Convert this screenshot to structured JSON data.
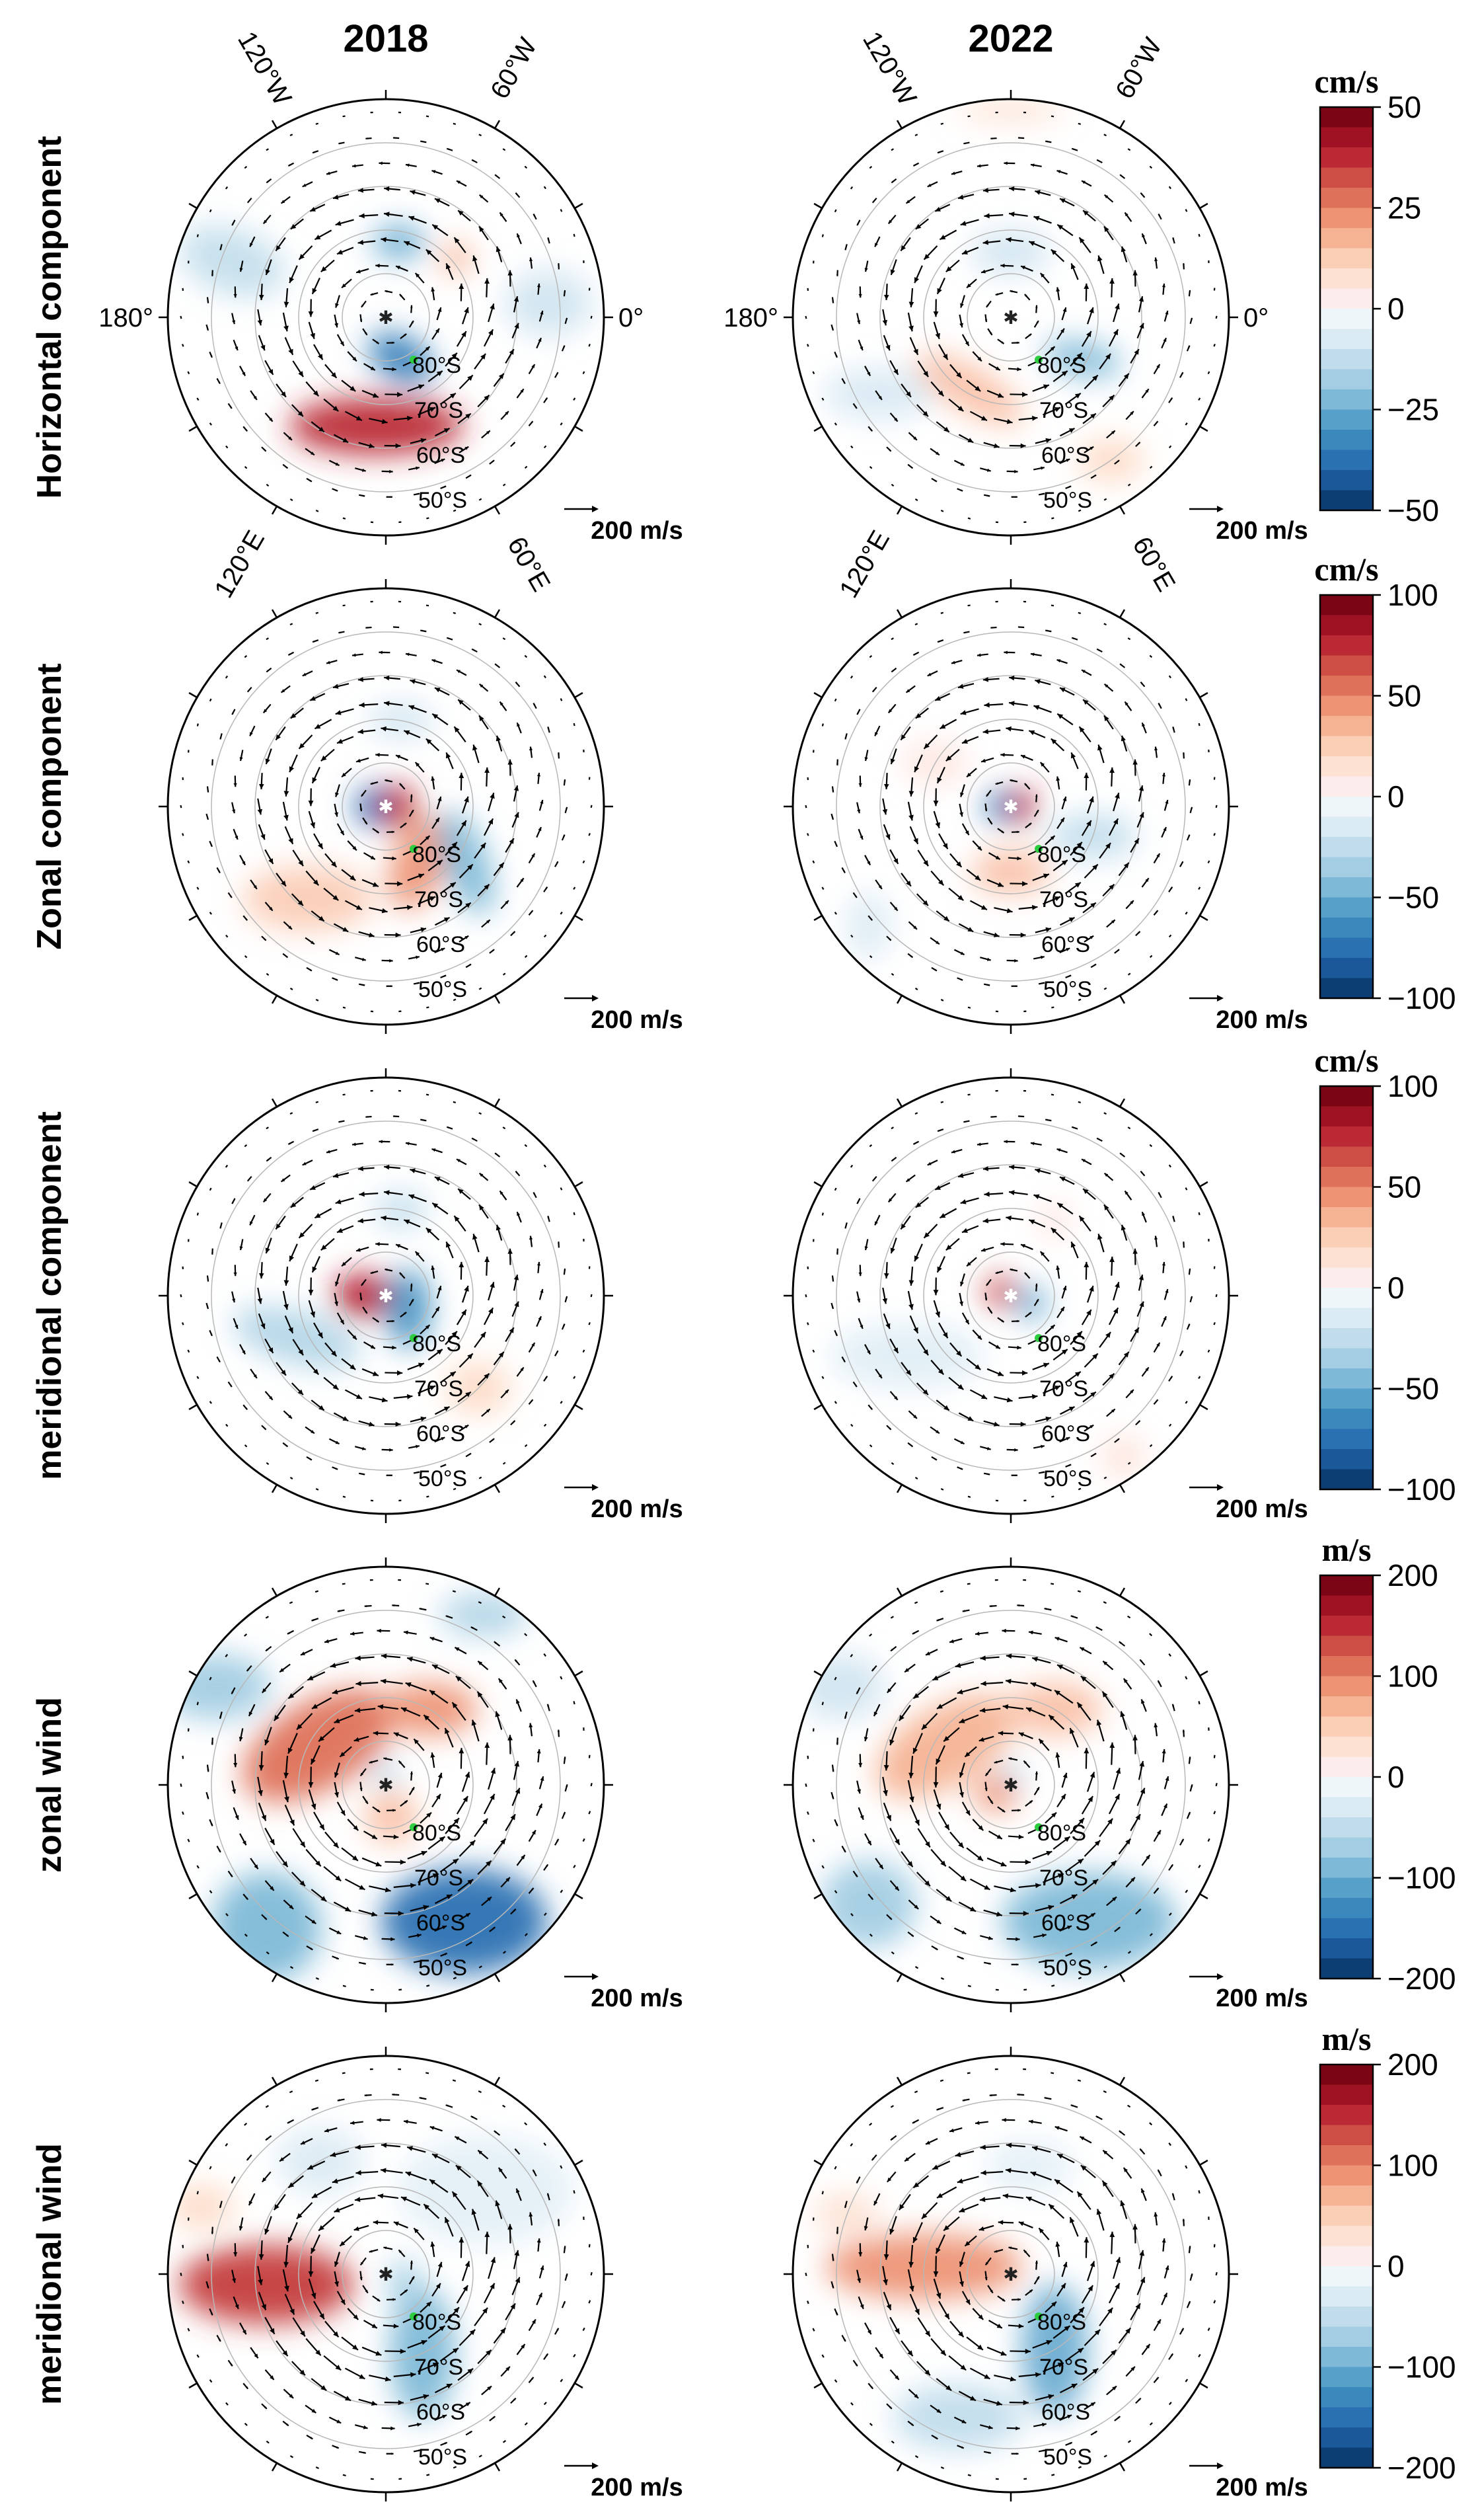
{
  "chart_data": {
    "type": "polar-contour-panels",
    "columns": [
      "2018",
      "2022"
    ],
    "compass_labels": {
      "top_left": "120°W",
      "top_right": "60°W",
      "left": "180°",
      "right": "0°",
      "bottom_left": "120°E",
      "bottom_right": "60°E"
    },
    "latitude_rings": [
      "80°S",
      "70°S",
      "60°S",
      "50°S"
    ],
    "reference_vector": "200 m/s",
    "rows": [
      {
        "label": "Horizontal component",
        "unit": "cm/s",
        "colorbar_ticks": [
          "50",
          "25",
          "0",
          "−25",
          "−50"
        ],
        "vmin": -50,
        "vmax": 50,
        "panels": [
          {
            "year": "2018",
            "blobs": [
              {
                "v": -35,
                "r": 0.2,
                "a": -70,
                "rx": 0.16,
                "ry": 0.1,
                "rot": 30
              },
              {
                "v": 38,
                "r": 0.5,
                "a": -95,
                "rx": 0.4,
                "ry": 0.13,
                "rot": 0
              },
              {
                "v": -25,
                "r": 0.35,
                "a": 80,
                "rx": 0.12,
                "ry": 0.08,
                "rot": 0
              },
              {
                "v": 18,
                "r": 0.42,
                "a": 40,
                "rx": 0.07,
                "ry": 0.07,
                "rot": 0
              },
              {
                "v": -12,
                "r": 0.75,
                "a": 160,
                "rx": 0.25,
                "ry": 0.15,
                "rot": 20
              },
              {
                "v": -10,
                "r": 0.75,
                "a": 5,
                "rx": 0.2,
                "ry": 0.15,
                "rot": 0
              }
            ]
          },
          {
            "year": "2022",
            "blobs": [
              {
                "v": -22,
                "r": 0.38,
                "a": -30,
                "rx": 0.18,
                "ry": 0.08,
                "rot": 10
              },
              {
                "v": 15,
                "r": 0.38,
                "a": -120,
                "rx": 0.28,
                "ry": 0.1,
                "rot": 30
              },
              {
                "v": 8,
                "r": 0.95,
                "a": 90,
                "rx": 0.25,
                "ry": 0.05,
                "rot": 0
              },
              {
                "v": -10,
                "r": 0.3,
                "a": 90,
                "rx": 0.18,
                "ry": 0.1,
                "rot": 0
              },
              {
                "v": 10,
                "r": 0.8,
                "a": -55,
                "rx": 0.15,
                "ry": 0.1,
                "rot": 0
              },
              {
                "v": -8,
                "r": 0.7,
                "a": -150,
                "rx": 0.25,
                "ry": 0.12,
                "rot": 0
              }
            ]
          }
        ]
      },
      {
        "label": "Zonal component",
        "unit": "cm/s",
        "colorbar_ticks": [
          "100",
          "50",
          "0",
          "−50",
          "−100"
        ],
        "vmin": -100,
        "vmax": 100,
        "panels": [
          {
            "year": "2018",
            "blobs": [
              {
                "v": -80,
                "r": 0.05,
                "a": 180,
                "rx": 0.09,
                "ry": 0.09,
                "rot": 0
              },
              {
                "v": 75,
                "r": 0.06,
                "a": 0,
                "rx": 0.08,
                "ry": 0.1,
                "rot": 0
              },
              {
                "v": 45,
                "r": 0.3,
                "a": -60,
                "rx": 0.12,
                "ry": 0.22,
                "rot": 20
              },
              {
                "v": -45,
                "r": 0.45,
                "a": -35,
                "rx": 0.1,
                "ry": 0.25,
                "rot": -20
              },
              {
                "v": 25,
                "r": 0.55,
                "a": -130,
                "rx": 0.3,
                "ry": 0.15,
                "rot": 0
              },
              {
                "v": -20,
                "r": 0.4,
                "a": 80,
                "rx": 0.15,
                "ry": 0.08,
                "rot": 0
              }
            ]
          },
          {
            "year": "2022",
            "blobs": [
              {
                "v": -70,
                "r": 0.05,
                "a": 180,
                "rx": 0.07,
                "ry": 0.07,
                "rot": 0
              },
              {
                "v": 80,
                "r": 0.05,
                "a": 0,
                "rx": 0.06,
                "ry": 0.08,
                "rot": 0
              },
              {
                "v": -25,
                "r": 0.4,
                "a": -20,
                "rx": 0.2,
                "ry": 0.1,
                "rot": 0
              },
              {
                "v": 30,
                "r": 0.3,
                "a": -90,
                "rx": 0.18,
                "ry": 0.1,
                "rot": 0
              },
              {
                "v": -15,
                "r": 0.85,
                "a": -140,
                "rx": 0.1,
                "ry": 0.15,
                "rot": 0
              },
              {
                "v": 10,
                "r": 0.4,
                "a": 150,
                "rx": 0.15,
                "ry": 0.1,
                "rot": 0
              }
            ]
          }
        ]
      },
      {
        "label": "meridional component",
        "unit": "cm/s",
        "colorbar_ticks": [
          "100",
          "50",
          "0",
          "−50",
          "−100"
        ],
        "vmin": -100,
        "vmax": 100,
        "panels": [
          {
            "year": "2018",
            "blobs": [
              {
                "v": 80,
                "r": 0.1,
                "a": 180,
                "rx": 0.14,
                "ry": 0.1,
                "rot": 0
              },
              {
                "v": -60,
                "r": 0.12,
                "a": -30,
                "rx": 0.1,
                "ry": 0.18,
                "rot": 0
              },
              {
                "v": -30,
                "r": 0.45,
                "a": -155,
                "rx": 0.3,
                "ry": 0.12,
                "rot": 15
              },
              {
                "v": 20,
                "r": 0.6,
                "a": -45,
                "rx": 0.15,
                "ry": 0.12,
                "rot": 0
              },
              {
                "v": -25,
                "r": 0.4,
                "a": 80,
                "rx": 0.12,
                "ry": 0.08,
                "rot": 0
              }
            ]
          },
          {
            "year": "2022",
            "blobs": [
              {
                "v": 70,
                "r": 0.05,
                "a": 160,
                "rx": 0.07,
                "ry": 0.07,
                "rot": 0
              },
              {
                "v": -50,
                "r": 0.1,
                "a": -20,
                "rx": 0.07,
                "ry": 0.08,
                "rot": 0
              },
              {
                "v": -12,
                "r": 0.55,
                "a": -150,
                "rx": 0.35,
                "ry": 0.15,
                "rot": 0
              },
              {
                "v": 12,
                "r": 0.9,
                "a": -55,
                "rx": 0.1,
                "ry": 0.1,
                "rot": 0
              },
              {
                "v": 10,
                "r": 0.4,
                "a": 60,
                "rx": 0.08,
                "ry": 0.08,
                "rot": 0
              }
            ]
          }
        ]
      },
      {
        "label": "zonal wind",
        "unit": "m/s",
        "colorbar_ticks": [
          "200",
          "100",
          "0",
          "−100",
          "−200"
        ],
        "vmin": -200,
        "vmax": 200,
        "panels": [
          {
            "year": "2018",
            "blobs": [
              {
                "v": -150,
                "r": 0.72,
                "a": -60,
                "rx": 0.38,
                "ry": 0.24,
                "rot": 0
              },
              {
                "v": -90,
                "r": 0.85,
                "a": -130,
                "rx": 0.25,
                "ry": 0.25,
                "rot": 0
              },
              {
                "v": -70,
                "r": 0.9,
                "a": 150,
                "rx": 0.25,
                "ry": 0.15,
                "rot": 0
              },
              {
                "v": -60,
                "r": 0.9,
                "a": 60,
                "rx": 0.2,
                "ry": 0.1,
                "rot": 0
              },
              {
                "v": 110,
                "r": 0.36,
                "a": 150,
                "rx": 0.38,
                "ry": 0.2,
                "rot": -30
              },
              {
                "v": 90,
                "r": 0.4,
                "a": 60,
                "rx": 0.22,
                "ry": 0.12,
                "rot": 0
              },
              {
                "v": 60,
                "r": 0.15,
                "a": -80,
                "rx": 0.12,
                "ry": 0.12,
                "rot": 0
              },
              {
                "v": -80,
                "r": 0.05,
                "a": 90,
                "rx": 0.05,
                "ry": 0.05,
                "rot": 0
              }
            ]
          },
          {
            "year": "2022",
            "blobs": [
              {
                "v": -90,
                "r": 0.72,
                "a": -60,
                "rx": 0.4,
                "ry": 0.22,
                "rot": 0
              },
              {
                "v": -70,
                "r": 0.85,
                "a": -140,
                "rx": 0.22,
                "ry": 0.2,
                "rot": 0
              },
              {
                "v": -40,
                "r": 0.9,
                "a": 150,
                "rx": 0.2,
                "ry": 0.15,
                "rot": 0
              },
              {
                "v": 70,
                "r": 0.35,
                "a": 150,
                "rx": 0.35,
                "ry": 0.18,
                "rot": -30
              },
              {
                "v": 60,
                "r": 0.4,
                "a": 60,
                "rx": 0.22,
                "ry": 0.12,
                "rot": 0
              },
              {
                "v": 90,
                "r": 0.08,
                "a": -150,
                "rx": 0.1,
                "ry": 0.08,
                "rot": 0
              },
              {
                "v": -60,
                "r": 0.05,
                "a": 80,
                "rx": 0.05,
                "ry": 0.05,
                "rot": 0
              }
            ]
          }
        ]
      },
      {
        "label": "meridional wind",
        "unit": "m/s",
        "colorbar_ticks": [
          "200",
          "100",
          "0",
          "−100",
          "−200"
        ],
        "vmin": -200,
        "vmax": 200,
        "panels": [
          {
            "year": "2018",
            "blobs": [
              {
                "v": 140,
                "r": 0.55,
                "a": -175,
                "rx": 0.4,
                "ry": 0.18,
                "rot": 0
              },
              {
                "v": -90,
                "r": 0.4,
                "a": -65,
                "rx": 0.15,
                "ry": 0.3,
                "rot": 0
              },
              {
                "v": -70,
                "r": 0.1,
                "a": -30,
                "rx": 0.07,
                "ry": 0.12,
                "rot": 0
              },
              {
                "v": -20,
                "r": 0.6,
                "a": 40,
                "rx": 0.4,
                "ry": 0.25,
                "rot": 0
              },
              {
                "v": -30,
                "r": 0.6,
                "a": 120,
                "rx": 0.2,
                "ry": 0.15,
                "rot": 0
              },
              {
                "v": 40,
                "r": 0.9,
                "a": 160,
                "rx": 0.15,
                "ry": 0.1,
                "rot": 0
              }
            ]
          },
          {
            "year": "2022",
            "blobs": [
              {
                "v": 90,
                "r": 0.4,
                "a": 175,
                "rx": 0.45,
                "ry": 0.15,
                "rot": 0
              },
              {
                "v": -100,
                "r": 0.4,
                "a": -60,
                "rx": 0.15,
                "ry": 0.3,
                "rot": 0
              },
              {
                "v": -50,
                "r": 0.7,
                "a": -110,
                "rx": 0.3,
                "ry": 0.15,
                "rot": 0
              },
              {
                "v": -20,
                "r": 0.5,
                "a": 80,
                "rx": 0.2,
                "ry": 0.12,
                "rot": 0
              },
              {
                "v": 30,
                "r": 0.8,
                "a": 160,
                "rx": 0.15,
                "ry": 0.1,
                "rot": 0
              }
            ]
          }
        ]
      }
    ]
  }
}
